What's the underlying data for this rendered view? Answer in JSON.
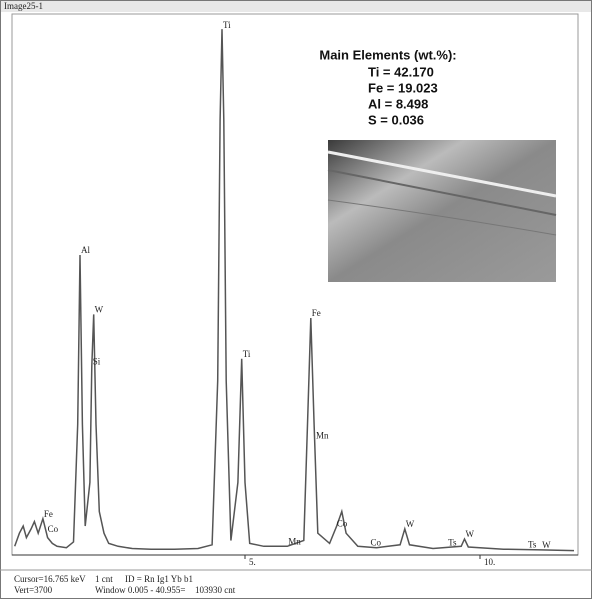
{
  "window_title": "Image25-1",
  "chart_data": {
    "type": "line",
    "color": "#555555",
    "x": [
      0.1,
      0.2,
      0.28,
      0.35,
      0.45,
      0.52,
      0.6,
      0.7,
      0.8,
      0.9,
      1.0,
      1.2,
      1.35,
      1.44,
      1.49,
      1.54,
      1.6,
      1.7,
      1.74,
      1.78,
      1.83,
      1.9,
      2.0,
      2.1,
      2.3,
      2.6,
      3.0,
      3.5,
      4.0,
      4.3,
      4.42,
      4.47,
      4.51,
      4.55,
      4.6,
      4.7,
      4.85,
      4.93,
      5.0,
      5.1,
      5.4,
      5.9,
      6.25,
      6.33,
      6.4,
      6.47,
      6.55,
      6.8,
      6.95,
      7.06,
      7.15,
      7.4,
      7.8,
      8.3,
      8.4,
      8.5,
      9.0,
      9.6,
      9.67,
      9.75,
      10.5,
      11.3,
      12.0
    ],
    "values": [
      60,
      150,
      200,
      120,
      180,
      230,
      150,
      250,
      120,
      80,
      60,
      50,
      90,
      900,
      2067,
      900,
      200,
      500,
      1300,
      1658,
      900,
      300,
      150,
      80,
      60,
      45,
      40,
      40,
      45,
      70,
      1200,
      3000,
      3623,
      3000,
      1200,
      100,
      500,
      1352,
      500,
      80,
      60,
      60,
      100,
      900,
      1633,
      900,
      150,
      80,
      200,
      300,
      150,
      60,
      50,
      70,
      180,
      70,
      45,
      60,
      110,
      55,
      40,
      35,
      30
    ],
    "xlim": [
      0,
      12.0
    ],
    "ylim": [
      0,
      3700
    ],
    "xticks": [
      {
        "value": 5,
        "label": "5."
      },
      {
        "value": 10,
        "label": "10."
      }
    ],
    "annotations": [
      {
        "text": "Ti",
        "x": 4.51
      },
      {
        "text": "Al",
        "x": 1.49
      },
      {
        "text": "Si",
        "x": 1.74
      },
      {
        "text": "W",
        "x": 1.78
      },
      {
        "text": "Fe",
        "x": 6.4
      },
      {
        "text": "Ti",
        "x": 4.93
      },
      {
        "text": "Fe",
        "x": 0.7
      },
      {
        "text": "Co",
        "x": 0.78
      },
      {
        "text": "Mn",
        "x": 5.9
      },
      {
        "text": "Mn",
        "x": 6.49
      },
      {
        "text": "Co",
        "x": 6.93
      },
      {
        "text": "Co",
        "x": 7.65
      },
      {
        "text": "W",
        "x": 8.4
      },
      {
        "text": "Ts",
        "x": 9.3
      },
      {
        "text": "W",
        "x": 9.67
      },
      {
        "text": "Ts",
        "x": 11.0
      },
      {
        "text": "W",
        "x": 11.3
      }
    ]
  },
  "info_box": {
    "title": "Main Elements (wt.%):",
    "lines": [
      "Ti = 42.170",
      "Fe = 19.023",
      "Al = 8.498",
      "S = 0.036"
    ]
  },
  "status": {
    "cursor": "Cursor=16.765 keV",
    "counts": "1 cnt",
    "id": "ID = Rn Ig1 Yb b1",
    "vert": "Vert=3700",
    "window": "Window 0.005 - 40.955=",
    "total": "103930 cnt"
  }
}
